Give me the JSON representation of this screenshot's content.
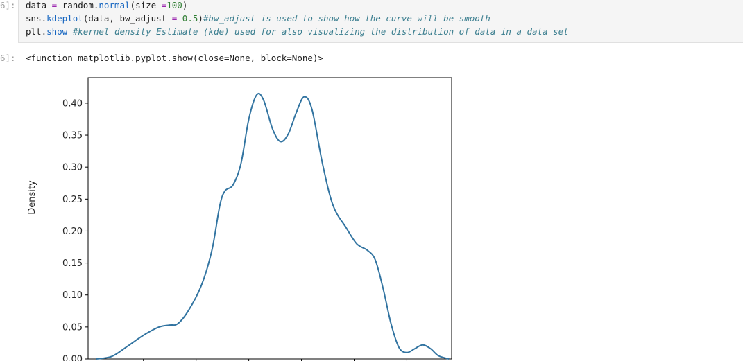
{
  "input_cell": {
    "prompt": "6]:",
    "lines": [
      {
        "parts": [
          {
            "t": "data ",
            "c": ""
          },
          {
            "t": "=",
            "c": "op"
          },
          {
            "t": " random.",
            "c": ""
          },
          {
            "t": "normal",
            "c": "fn"
          },
          {
            "t": "(size ",
            "c": ""
          },
          {
            "t": "=",
            "c": "op"
          },
          {
            "t": "100",
            "c": "num"
          },
          {
            "t": ")",
            "c": ""
          }
        ]
      },
      {
        "parts": [
          {
            "t": "sns.",
            "c": ""
          },
          {
            "t": "kdeplot",
            "c": "fn"
          },
          {
            "t": "(data, bw_adjust ",
            "c": ""
          },
          {
            "t": "=",
            "c": "op"
          },
          {
            "t": " ",
            "c": ""
          },
          {
            "t": "0.5",
            "c": "num"
          },
          {
            "t": ")",
            "c": ""
          },
          {
            "t": "#bw_adjust is used to show how the curve will be smooth",
            "c": "cmt"
          }
        ]
      },
      {
        "parts": [
          {
            "t": "plt.",
            "c": ""
          },
          {
            "t": "show",
            "c": "fn"
          },
          {
            "t": " ",
            "c": ""
          },
          {
            "t": "#kernel density Estimate (kde) used for also visualizing the distribution of data in a data set",
            "c": "cmt"
          }
        ]
      }
    ]
  },
  "output_cell": {
    "prompt": "6]:",
    "text": "<function matplotlib.pyplot.show(close=None, block=None)>"
  },
  "chart_data": {
    "type": "line",
    "ylabel": "Density",
    "ylim": [
      0.0,
      0.44
    ],
    "yticks": [
      "0.00",
      "0.05",
      "0.10",
      "0.15",
      "0.20",
      "0.25",
      "0.30",
      "0.35",
      "0.40"
    ],
    "series": [
      {
        "color": "#3274a1",
        "points": [
          [
            -2.9,
            0.0
          ],
          [
            -2.6,
            0.004
          ],
          [
            -2.3,
            0.02
          ],
          [
            -2.0,
            0.037
          ],
          [
            -1.7,
            0.05
          ],
          [
            -1.5,
            0.053
          ],
          [
            -1.35,
            0.055
          ],
          [
            -1.15,
            0.075
          ],
          [
            -0.9,
            0.115
          ],
          [
            -0.7,
            0.17
          ],
          [
            -0.55,
            0.24
          ],
          [
            -0.45,
            0.263
          ],
          [
            -0.3,
            0.272
          ],
          [
            -0.15,
            0.305
          ],
          [
            0.0,
            0.375
          ],
          [
            0.15,
            0.413
          ],
          [
            0.28,
            0.405
          ],
          [
            0.45,
            0.36
          ],
          [
            0.6,
            0.34
          ],
          [
            0.75,
            0.352
          ],
          [
            0.9,
            0.385
          ],
          [
            1.05,
            0.41
          ],
          [
            1.2,
            0.39
          ],
          [
            1.4,
            0.305
          ],
          [
            1.6,
            0.24
          ],
          [
            1.85,
            0.205
          ],
          [
            2.05,
            0.18
          ],
          [
            2.25,
            0.17
          ],
          [
            2.4,
            0.155
          ],
          [
            2.55,
            0.11
          ],
          [
            2.7,
            0.055
          ],
          [
            2.85,
            0.018
          ],
          [
            3.0,
            0.01
          ],
          [
            3.15,
            0.016
          ],
          [
            3.3,
            0.022
          ],
          [
            3.45,
            0.016
          ],
          [
            3.6,
            0.005
          ],
          [
            3.8,
            0.0
          ]
        ]
      }
    ],
    "xlim": [
      -3.05,
      3.85
    ]
  }
}
